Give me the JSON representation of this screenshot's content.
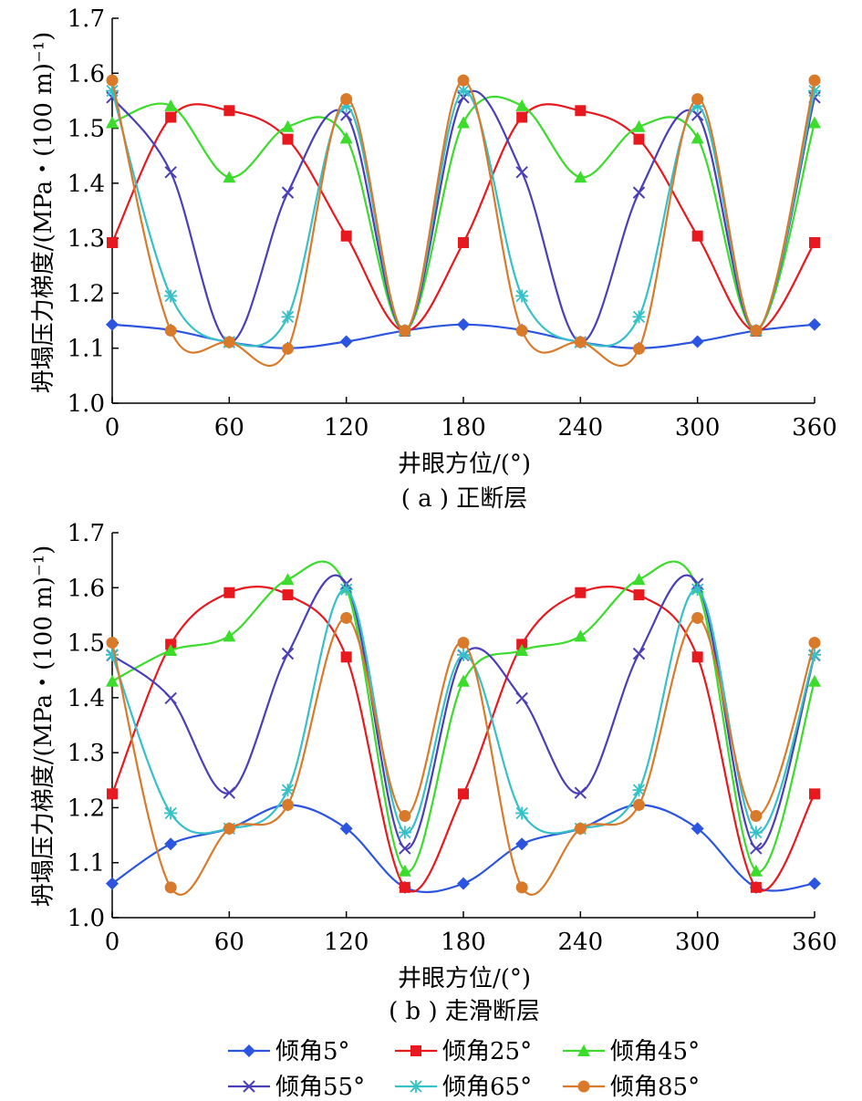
{
  "legend": [
    {
      "label": "倾角5°",
      "color": "#2b55e0",
      "marker": "diamond"
    },
    {
      "label": "倾角25°",
      "color": "#e8191e",
      "marker": "square"
    },
    {
      "label": "倾角45°",
      "color": "#3bdc2b",
      "marker": "triangle"
    },
    {
      "label": "倾角55°",
      "color": "#4a3fb8",
      "marker": "x"
    },
    {
      "label": "倾角65°",
      "color": "#36c0c8",
      "marker": "star"
    },
    {
      "label": "倾角85°",
      "color": "#d97a2a",
      "marker": "circle"
    }
  ],
  "chart_data": [
    {
      "type": "line",
      "caption": "( a ) 正断层",
      "xlabel": "井眼方位/(°)",
      "ylabel": "坍塌压力梯度/(MPa・(100 m)⁻¹)",
      "xlim": [
        0,
        360
      ],
      "ylim": [
        1.0,
        1.7
      ],
      "xticks": [
        0,
        60,
        120,
        180,
        240,
        300,
        360
      ],
      "yticks": [
        "1.0",
        "1.1",
        "1.2",
        "1.3",
        "1.4",
        "1.5",
        "1.6",
        "1.7"
      ],
      "x": [
        0,
        30,
        60,
        90,
        120,
        150,
        180,
        210,
        240,
        270,
        300,
        330,
        360
      ],
      "series": [
        {
          "name": "倾角5°",
          "values": [
            1.143,
            1.133,
            1.111,
            1.1,
            1.112,
            1.132,
            1.143,
            1.133,
            1.111,
            1.1,
            1.112,
            1.132,
            1.143
          ]
        },
        {
          "name": "倾角25°",
          "values": [
            1.292,
            1.52,
            1.532,
            1.48,
            1.304,
            1.131,
            1.292,
            1.52,
            1.532,
            1.48,
            1.304,
            1.131,
            1.292
          ]
        },
        {
          "name": "倾角45°",
          "values": [
            1.51,
            1.541,
            1.411,
            1.503,
            1.482,
            1.132,
            1.51,
            1.541,
            1.411,
            1.503,
            1.482,
            1.132,
            1.51
          ]
        },
        {
          "name": "倾角55°",
          "values": [
            1.556,
            1.42,
            1.111,
            1.383,
            1.524,
            1.132,
            1.556,
            1.42,
            1.111,
            1.383,
            1.524,
            1.132,
            1.556
          ]
        },
        {
          "name": "倾角65°",
          "values": [
            1.568,
            1.195,
            1.111,
            1.157,
            1.54,
            1.132,
            1.568,
            1.195,
            1.111,
            1.157,
            1.54,
            1.132,
            1.568
          ]
        },
        {
          "name": "倾角85°",
          "values": [
            1.587,
            1.132,
            1.111,
            1.099,
            1.553,
            1.132,
            1.587,
            1.132,
            1.111,
            1.099,
            1.553,
            1.132,
            1.587
          ]
        }
      ]
    },
    {
      "type": "line",
      "caption": "( b ) 走滑断层",
      "xlabel": "井眼方位/(°)",
      "ylabel": "坍塌压力梯度/(MPa・(100 m)⁻¹)",
      "xlim": [
        0,
        360
      ],
      "ylim": [
        1.0,
        1.7
      ],
      "xticks": [
        0,
        60,
        120,
        180,
        240,
        300,
        360
      ],
      "yticks": [
        "1.0",
        "1.1",
        "1.2",
        "1.3",
        "1.4",
        "1.5",
        "1.6",
        "1.7"
      ],
      "x": [
        0,
        30,
        60,
        90,
        120,
        150,
        180,
        210,
        240,
        270,
        300,
        330,
        360
      ],
      "series": [
        {
          "name": "倾角5°",
          "values": [
            1.062,
            1.134,
            1.162,
            1.205,
            1.162,
            1.055,
            1.062,
            1.134,
            1.162,
            1.205,
            1.162,
            1.055,
            1.062
          ]
        },
        {
          "name": "倾角25°",
          "values": [
            1.225,
            1.497,
            1.591,
            1.587,
            1.474,
            1.055,
            1.225,
            1.497,
            1.591,
            1.587,
            1.474,
            1.055,
            1.225
          ]
        },
        {
          "name": "倾角45°",
          "values": [
            1.43,
            1.486,
            1.512,
            1.615,
            1.6,
            1.085,
            1.43,
            1.486,
            1.512,
            1.615,
            1.6,
            1.085,
            1.43
          ]
        },
        {
          "name": "倾角55°",
          "values": [
            1.477,
            1.399,
            1.227,
            1.48,
            1.607,
            1.126,
            1.477,
            1.399,
            1.227,
            1.48,
            1.607,
            1.126,
            1.477
          ]
        },
        {
          "name": "倾角65°",
          "values": [
            1.478,
            1.19,
            1.162,
            1.232,
            1.597,
            1.155,
            1.478,
            1.19,
            1.162,
            1.232,
            1.597,
            1.155,
            1.478
          ]
        },
        {
          "name": "倾角85°",
          "values": [
            1.5,
            1.055,
            1.162,
            1.205,
            1.545,
            1.185,
            1.5,
            1.055,
            1.162,
            1.205,
            1.545,
            1.185,
            1.5
          ]
        }
      ]
    }
  ]
}
